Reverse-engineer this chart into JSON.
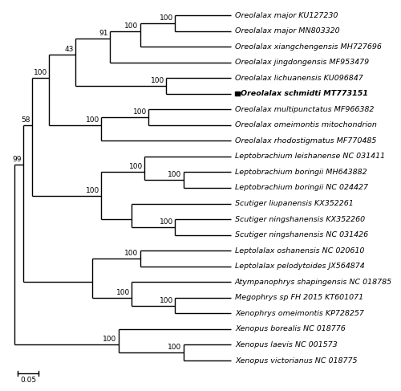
{
  "taxa": [
    "Oreolalax major KU127230",
    "Oreolalax major MN803320",
    "Oreolalax xiangchengensis MH727696",
    "Oreolalax jingdongensis MF953479",
    "Oreolalax lichuanensis KU096847",
    "Oreolalax schmidti MT773151",
    "Oreolalax multipunctatus MF966382",
    "Oreolalax omeimontis mitochondrion",
    "Oreolalax rhodostigmatus MF770485",
    "Leptobrachium leishanense NC 031411",
    "Leptobrachium boringii MH643882",
    "Leptobrachium boringii NC 024427",
    "Scutiger liupanensis KX352261",
    "Scutiger ningshanensis KX352260",
    "Scutiger ningshanensis NC 031426",
    "Leptolalax oshanensis NC 020610",
    "Leptolalax pelodytoides JX564874",
    "Atympanophrys shapingensis NC 018785",
    "Megophrys sp FH 2015 KT601071",
    "Xenophrys omeimontis KP728257",
    "Xenopus borealis NC 018776",
    "Xenopus laevis NC 001573",
    "Xenopus victorianus NC 018775"
  ],
  "special_marker": "Oreolalax schmidti MT773151",
  "line_color": "#000000",
  "text_color": "#000000",
  "bg_color": "#ffffff",
  "font_size": 6.8,
  "bootstrap_font_size": 6.5,
  "scale_bar_label": "0.05"
}
